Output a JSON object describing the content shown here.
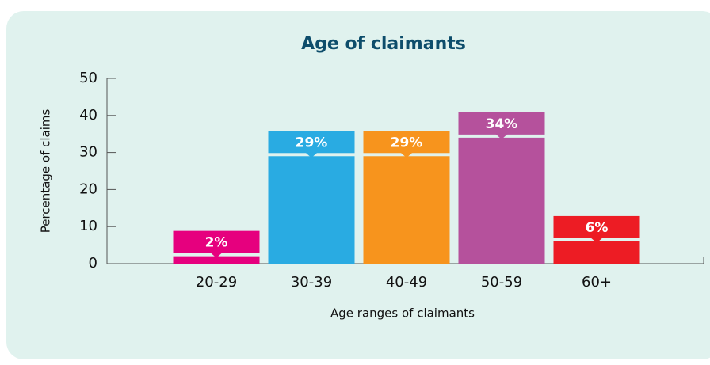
{
  "chart_data": {
    "type": "bar",
    "title": "Age of claimants",
    "x_label": "Age ranges of claimants",
    "y_label": "Percentage of claims",
    "categories": [
      "20-29",
      "30-39",
      "40-49",
      "50-59",
      "60+"
    ],
    "values": [
      2,
      29,
      29,
      34,
      6
    ],
    "value_labels": [
      "2%",
      "29%",
      "29%",
      "34%",
      "6%"
    ],
    "colors": [
      "#e6007e",
      "#29abe2",
      "#f7941d",
      "#b5519c",
      "#ed1c24"
    ],
    "ylim": [
      0,
      50
    ],
    "yticks": [
      0,
      10,
      20,
      30,
      40,
      50
    ]
  }
}
